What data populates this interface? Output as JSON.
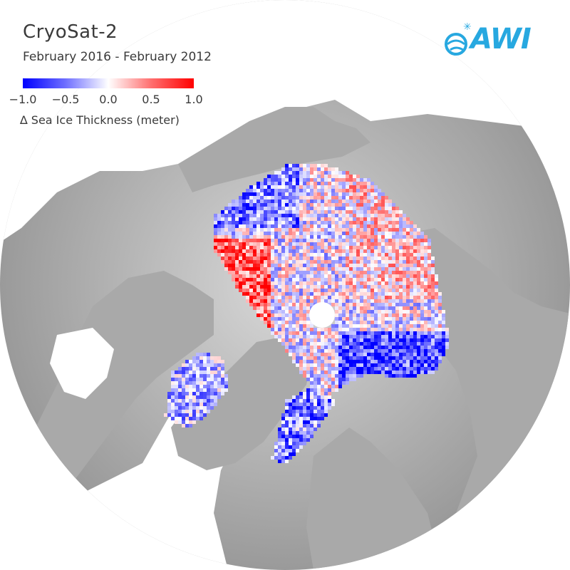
{
  "title": "CryoSat-2",
  "subtitle": "February 2016 - February 2012",
  "colorbar": {
    "ticks": [
      "−1.0",
      "−0.5",
      "0.0",
      "0.5",
      "1.0"
    ],
    "tick_values": [
      -1.0,
      -0.5,
      0.0,
      0.5,
      1.0
    ],
    "label": "∆ Sea Ice Thickness (meter)",
    "colors": {
      "low": "#0000ff",
      "mid": "#ffffff",
      "high": "#ff0000"
    }
  },
  "logo": {
    "text": "AWI",
    "color": "#27a8e0",
    "icon": "globe-icon"
  },
  "colors": {
    "land": "#a9a9a9",
    "ocean": "#ffffff",
    "disc": "#c8c8c8"
  }
}
